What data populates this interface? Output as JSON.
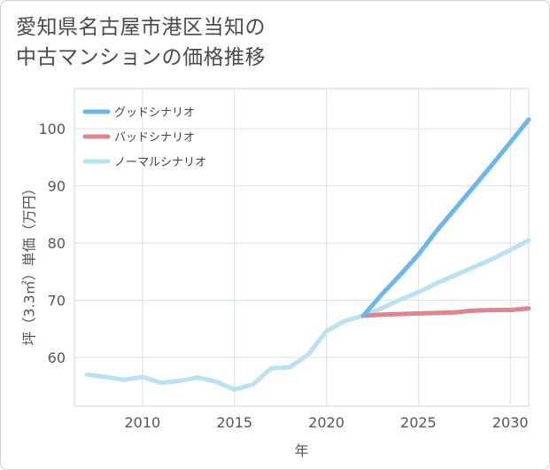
{
  "chart_data": {
    "type": "line",
    "title": [
      "愛知県名古屋市港区当知の",
      "中古マンションの価格推移"
    ],
    "xlabel": "年",
    "ylabel": "坪（3.3㎡）単価（万円）",
    "xlim": [
      2006.3,
      2031.0
    ],
    "ylim": [
      51.5,
      107
    ],
    "x_ticks": [
      2010,
      2015,
      2020,
      2025,
      2030
    ],
    "y_ticks": [
      60,
      70,
      80,
      90,
      100
    ],
    "legend_position": "top-left",
    "series": [
      {
        "name": "グッドシナリオ",
        "color": "#6bb7ec",
        "x": [
          2022,
          2023,
          2024,
          2025,
          2026,
          2027,
          2028,
          2029,
          2030,
          2031
        ],
        "values": [
          67.3,
          71.0,
          74.4,
          78.0,
          82.2,
          86.0,
          89.8,
          93.7,
          97.6,
          101.6
        ]
      },
      {
        "name": "バッドシナリオ",
        "color": "#e0858e",
        "x": [
          2022,
          2023,
          2024,
          2025,
          2026,
          2027,
          2028,
          2029,
          2030,
          2031
        ],
        "values": [
          67.3,
          67.5,
          67.6,
          67.7,
          67.8,
          67.9,
          68.2,
          68.3,
          68.3,
          68.6
        ]
      },
      {
        "name": "ノーマルシナリオ",
        "color": "#b9e1f1",
        "x": [
          2007,
          2008,
          2009,
          2010,
          2011,
          2012,
          2013,
          2014,
          2015,
          2016,
          2017,
          2018,
          2019,
          2020,
          2021,
          2022,
          2023,
          2024,
          2025,
          2026,
          2027,
          2028,
          2029,
          2030,
          2031
        ],
        "values": [
          57.0,
          56.6,
          56.1,
          56.6,
          55.6,
          55.9,
          56.5,
          55.8,
          54.4,
          55.3,
          58.1,
          58.3,
          60.5,
          64.6,
          66.4,
          67.3,
          68.6,
          70.1,
          71.4,
          73.0,
          74.4,
          75.8,
          77.2,
          78.8,
          80.5
        ]
      }
    ]
  }
}
